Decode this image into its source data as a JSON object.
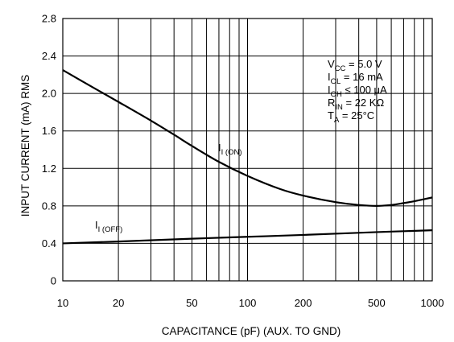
{
  "chart_data": {
    "type": "line",
    "title": "",
    "xlabel": "CAPACITANCE (pF) (AUX. TO GND)",
    "ylabel": "INPUT CURRENT (mA) RMS",
    "xscale": "log",
    "xlim": [
      10,
      1000
    ],
    "ylim": [
      0,
      2.8
    ],
    "grid": true,
    "x_ticks": [
      10,
      20,
      50,
      100,
      200,
      500,
      1000
    ],
    "x_tick_labels": [
      "10",
      "20",
      "50",
      "100",
      "200",
      "500",
      "1000"
    ],
    "y_ticks": [
      0,
      0.4,
      0.8,
      1.2,
      1.6,
      2.0,
      2.4,
      2.8
    ],
    "y_tick_labels": [
      "0",
      "0.4",
      "0.8",
      "1.2",
      "1.6",
      "2.0",
      "2.4",
      "2.8"
    ],
    "series": [
      {
        "name": "I(ON)",
        "label_main": "I",
        "label_sub": "I (ON)",
        "x": [
          10,
          15,
          20,
          30,
          40,
          50,
          70,
          100,
          150,
          200,
          300,
          400,
          500,
          600,
          700,
          800,
          1000
        ],
        "y": [
          2.25,
          2.05,
          1.91,
          1.71,
          1.56,
          1.44,
          1.27,
          1.12,
          0.98,
          0.91,
          0.84,
          0.81,
          0.8,
          0.81,
          0.83,
          0.85,
          0.89
        ]
      },
      {
        "name": "I(OFF)",
        "label_main": "I",
        "label_sub": "I (OFF)",
        "x": [
          10,
          20,
          50,
          100,
          200,
          500,
          1000
        ],
        "y": [
          0.4,
          0.42,
          0.45,
          0.47,
          0.49,
          0.52,
          0.54
        ]
      }
    ],
    "conditions": [
      {
        "main": "V",
        "sub": "CC",
        "rest": " = 5.0 V"
      },
      {
        "main": "I",
        "sub": "OL",
        "rest": " = 16 mA"
      },
      {
        "main": "I",
        "sub": "OH",
        "rest": " ≤ 100 μA"
      },
      {
        "main": "R",
        "sub": "IN",
        "rest": " = 22 KΩ"
      },
      {
        "main": "T",
        "sub": "A",
        "rest": " = 25°C"
      }
    ]
  }
}
